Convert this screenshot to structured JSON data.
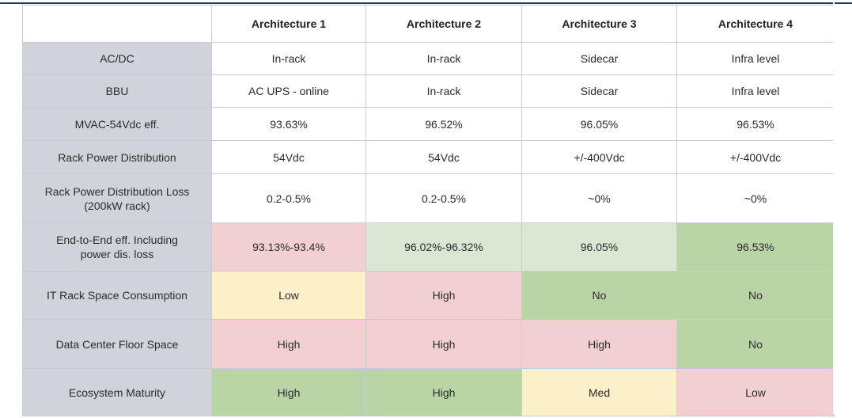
{
  "table": {
    "headers": [
      "",
      "Architecture 1",
      "Architecture 2",
      "Architecture 3",
      "Architecture 4"
    ],
    "colors": {
      "white": "#ffffff",
      "label_gray": "#d0d4da",
      "red": "#f2d0d2",
      "light_green": "#dbe6d3",
      "green": "#b9d5a6",
      "yellow": "#fbf0ca"
    },
    "rows": [
      {
        "label": "AC/DC",
        "cells": [
          {
            "value": "In-rack",
            "tone": "white"
          },
          {
            "value": "In-rack",
            "tone": "white"
          },
          {
            "value": "Sidecar",
            "tone": "white"
          },
          {
            "value": "Infra level",
            "tone": "white"
          }
        ]
      },
      {
        "label": "BBU",
        "cells": [
          {
            "value": "AC UPS - online",
            "tone": "white"
          },
          {
            "value": "In-rack",
            "tone": "white"
          },
          {
            "value": "Sidecar",
            "tone": "white"
          },
          {
            "value": "Infra level",
            "tone": "white"
          }
        ]
      },
      {
        "label": "MVAC-54Vdc eff.",
        "cells": [
          {
            "value": "93.63%",
            "tone": "white"
          },
          {
            "value": "96.52%",
            "tone": "white"
          },
          {
            "value": "96.05%",
            "tone": "white"
          },
          {
            "value": "96.53%",
            "tone": "white"
          }
        ]
      },
      {
        "label": "Rack Power Distribution",
        "cells": [
          {
            "value": "54Vdc",
            "tone": "white"
          },
          {
            "value": "54Vdc",
            "tone": "white"
          },
          {
            "value": "+/-400Vdc",
            "tone": "white"
          },
          {
            "value": "+/-400Vdc",
            "tone": "white"
          }
        ]
      },
      {
        "label": "Rack Power Distribution Loss\n(200kW rack)",
        "cells": [
          {
            "value": "0.2-0.5%",
            "tone": "white"
          },
          {
            "value": "0.2-0.5%",
            "tone": "white"
          },
          {
            "value": "~0%",
            "tone": "white"
          },
          {
            "value": "~0%",
            "tone": "white"
          }
        ]
      },
      {
        "label": "End-to-End eff. Including\npower dis. loss",
        "cells": [
          {
            "value": "93.13%-93.4%",
            "tone": "red"
          },
          {
            "value": "96.02%-96.32%",
            "tone": "light_green"
          },
          {
            "value": "96.05%",
            "tone": "light_green"
          },
          {
            "value": "96.53%",
            "tone": "green"
          }
        ]
      },
      {
        "label": "IT Rack Space Consumption",
        "cells": [
          {
            "value": "Low",
            "tone": "yellow"
          },
          {
            "value": "High",
            "tone": "red"
          },
          {
            "value": "No",
            "tone": "green"
          },
          {
            "value": "No",
            "tone": "green"
          }
        ]
      },
      {
        "label": "Data Center Floor Space",
        "cells": [
          {
            "value": "High",
            "tone": "red"
          },
          {
            "value": "High",
            "tone": "red"
          },
          {
            "value": "High",
            "tone": "red"
          },
          {
            "value": "No",
            "tone": "green"
          }
        ]
      },
      {
        "label": "Ecosystem Maturity",
        "cells": [
          {
            "value": "High",
            "tone": "green"
          },
          {
            "value": "High",
            "tone": "green"
          },
          {
            "value": "Med",
            "tone": "yellow"
          },
          {
            "value": "Low",
            "tone": "red"
          }
        ]
      }
    ]
  }
}
